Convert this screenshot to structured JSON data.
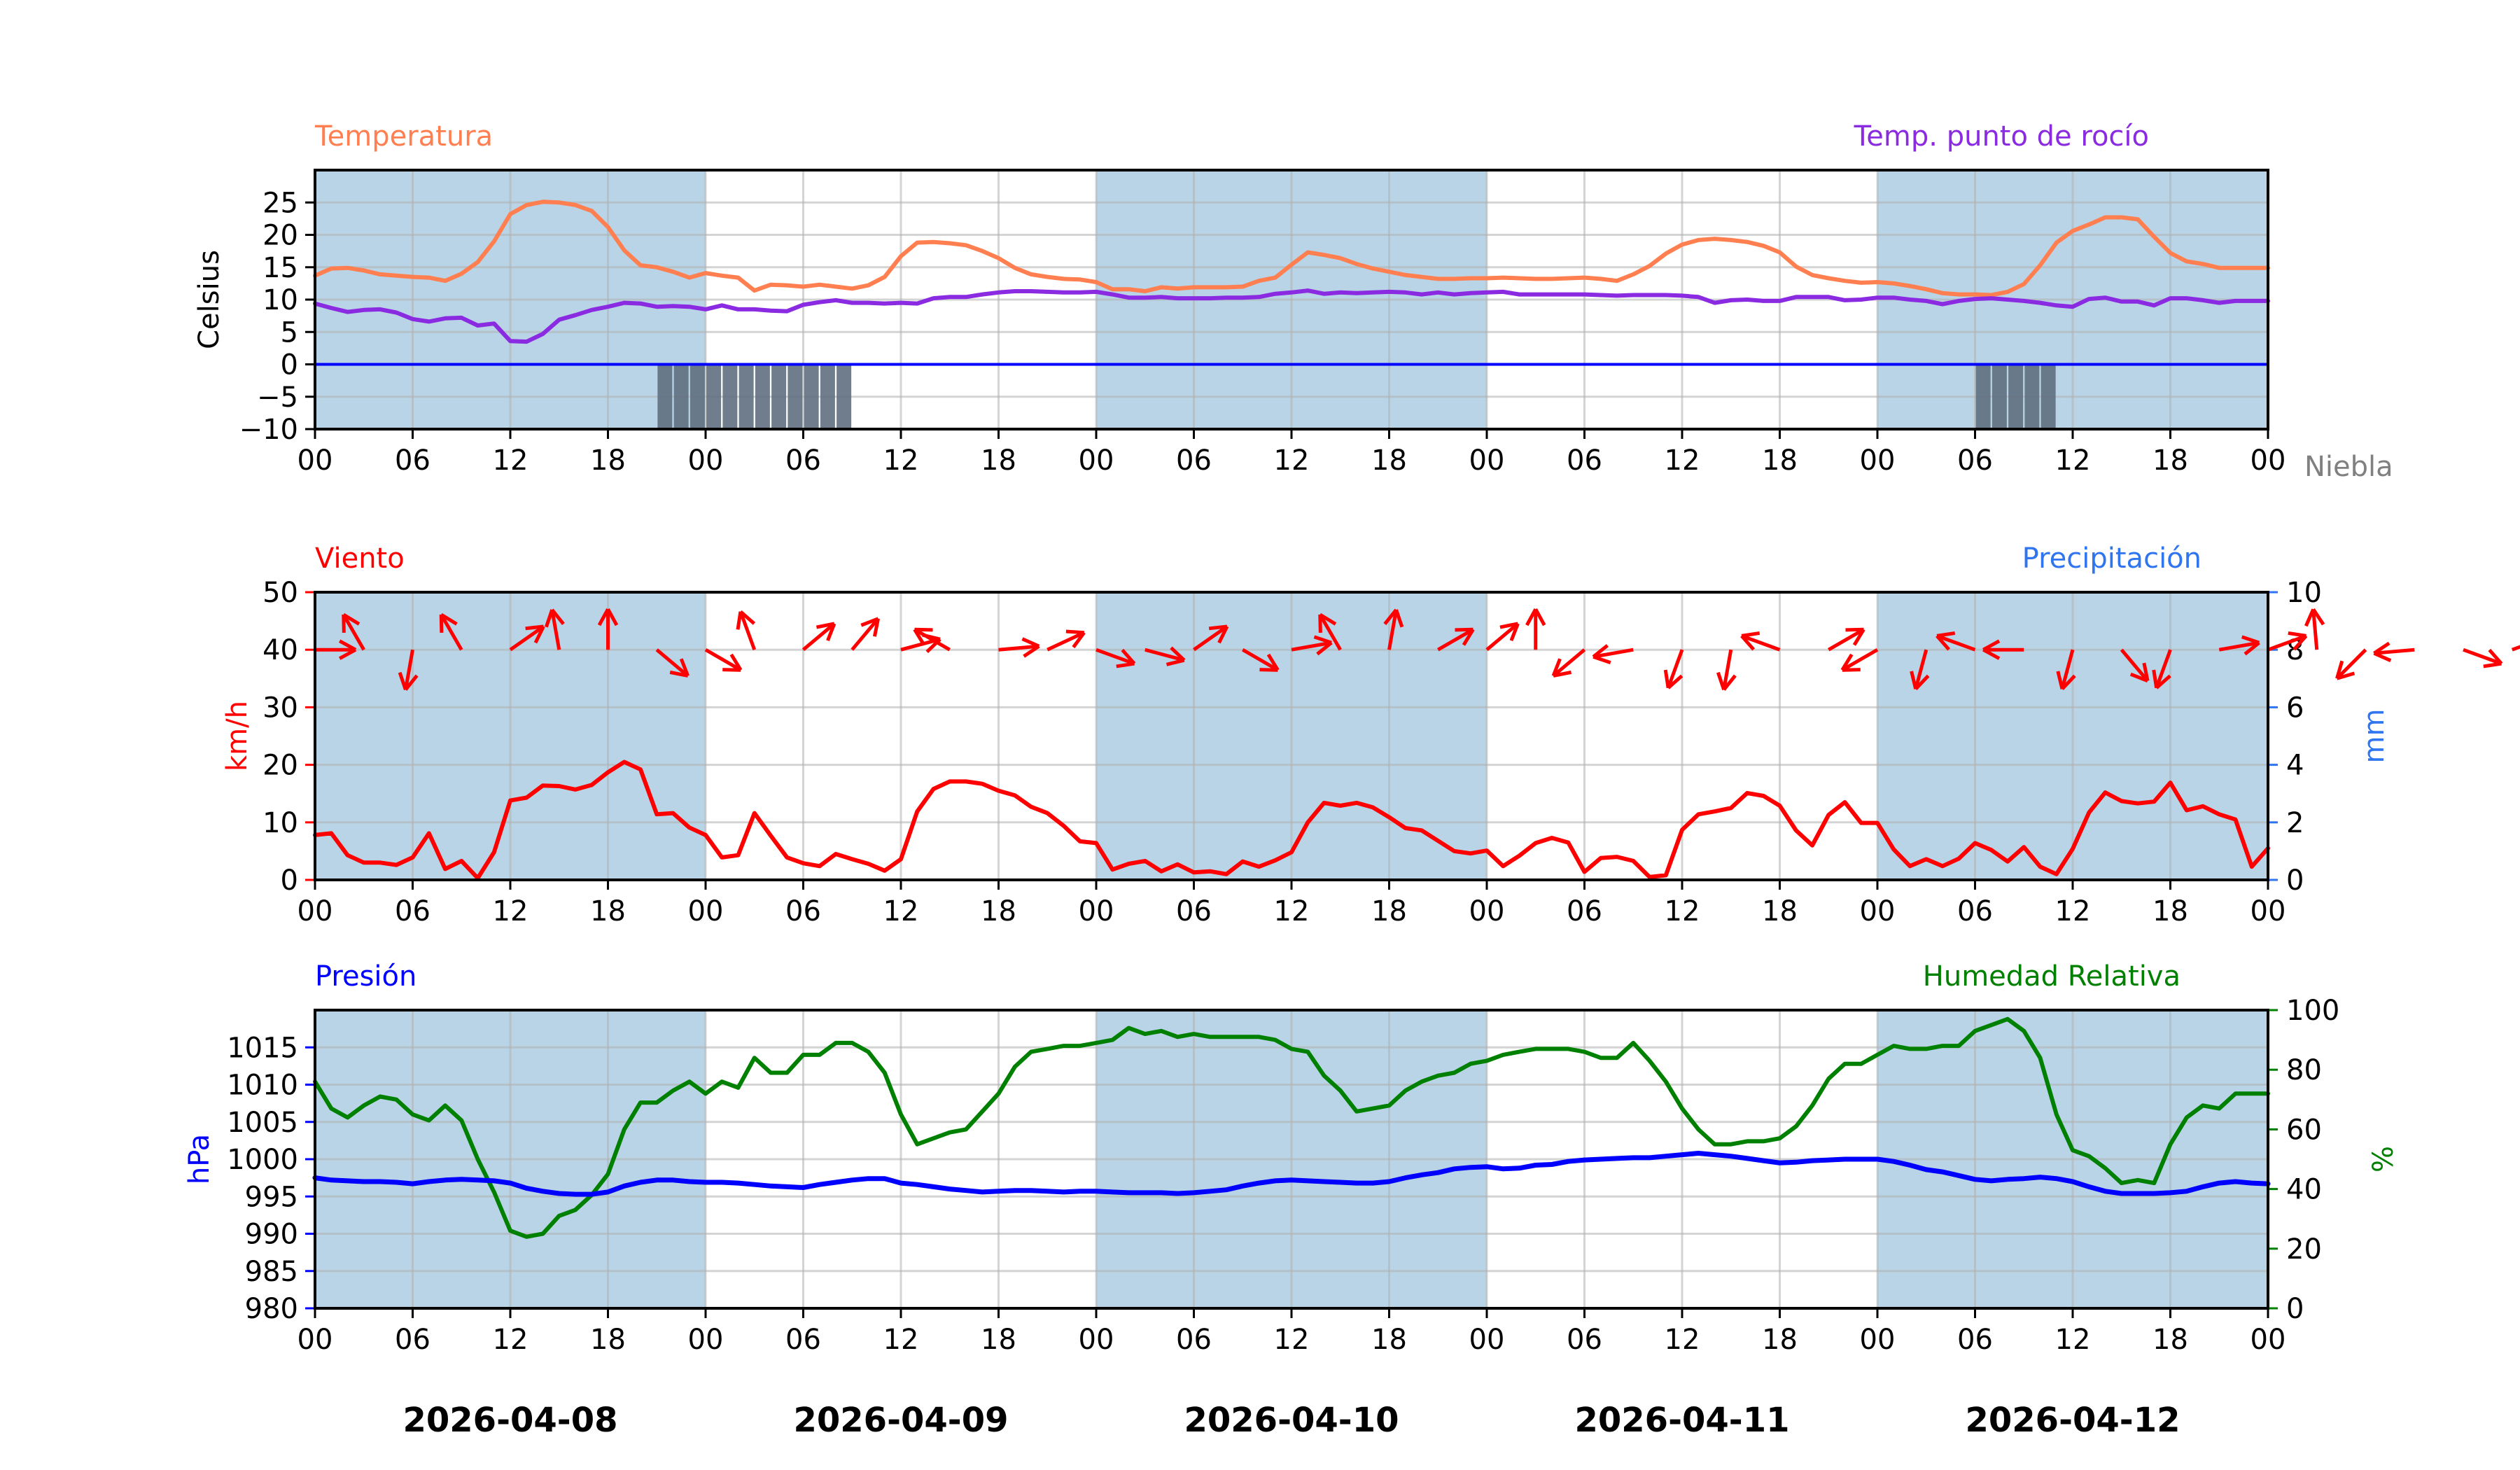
{
  "chart_data": [
    {
      "type": "line",
      "panel": "temperature",
      "title_left": "Temperatura",
      "title_right": "Temp. punto de rocío",
      "ylabel": "Celsius",
      "ylim": [
        -10,
        30
      ],
      "yticks": [
        -10,
        -5,
        0,
        5,
        10,
        15,
        20,
        25
      ],
      "ytick_labels": [
        "−10",
        "−5",
        "0",
        "5",
        "10",
        "15",
        "20",
        "25"
      ],
      "grid": true,
      "reference_line": {
        "y": 0,
        "color": "#0000ff"
      },
      "fog_label": "Niebla",
      "fog_hours": [
        21.5,
        22.5,
        23.5,
        24.5,
        25.5,
        26.5,
        27.5,
        28.5,
        29.5,
        30.5,
        31.5,
        32.5,
        102.5,
        103.5,
        104.5,
        105.5,
        106.5
      ],
      "series": [
        {
          "name": "Temperatura",
          "color": "#ff7f50",
          "values": [
            13.7,
            14.8,
            14.9,
            14.5,
            13.9,
            13.7,
            13.5,
            13.4,
            12.9,
            14.0,
            15.8,
            19.0,
            23.2,
            24.6,
            25.1,
            25.0,
            24.6,
            23.7,
            21.2,
            17.6,
            15.3,
            15.0,
            14.3,
            13.4,
            14.1,
            13.7,
            13.4,
            11.4,
            12.3,
            12.2,
            12.0,
            12.3,
            12.0,
            11.7,
            12.2,
            13.5,
            16.7,
            18.8,
            18.9,
            18.7,
            18.4,
            17.5,
            16.4,
            14.9,
            13.9,
            13.5,
            13.2,
            13.1,
            12.7,
            11.6,
            11.6,
            11.3,
            11.9,
            11.7,
            11.9,
            11.9,
            11.9,
            12.0,
            12.9,
            13.4,
            15.4,
            17.3,
            16.9,
            16.4,
            15.5,
            14.8,
            14.3,
            13.8,
            13.5,
            13.2,
            13.2,
            13.3,
            13.3,
            13.4,
            13.3,
            13.2,
            13.2,
            13.3,
            13.4,
            13.2,
            12.9,
            13.9,
            15.2,
            17.1,
            18.5,
            19.2,
            19.4,
            19.2,
            18.9,
            18.3,
            17.3,
            15.1,
            13.8,
            13.3,
            12.9,
            12.6,
            12.7,
            12.5,
            12.1,
            11.6,
            11.0,
            10.8,
            10.8,
            10.7,
            11.2,
            12.4,
            15.3,
            18.8,
            20.6,
            21.6,
            22.7,
            22.7,
            22.4,
            19.7,
            17.2,
            15.9,
            15.5,
            14.9,
            14.9,
            14.9,
            14.9
          ]
        },
        {
          "name": "Temp. punto de rocío",
          "color": "#8a2be2",
          "values": [
            9.4,
            8.7,
            8.1,
            8.4,
            8.5,
            8.0,
            7.0,
            6.6,
            7.1,
            7.2,
            6.0,
            6.3,
            3.6,
            3.5,
            4.7,
            6.9,
            7.6,
            8.4,
            8.9,
            9.5,
            9.4,
            8.9,
            9.0,
            8.9,
            8.5,
            9.1,
            8.5,
            8.5,
            8.3,
            8.2,
            9.2,
            9.6,
            9.9,
            9.5,
            9.5,
            9.4,
            9.5,
            9.4,
            10.2,
            10.4,
            10.4,
            10.8,
            11.1,
            11.3,
            11.3,
            11.2,
            11.1,
            11.1,
            11.2,
            10.8,
            10.3,
            10.3,
            10.4,
            10.2,
            10.2,
            10.2,
            10.3,
            10.3,
            10.4,
            10.9,
            11.1,
            11.4,
            10.9,
            11.1,
            11.0,
            11.1,
            11.2,
            11.1,
            10.8,
            11.1,
            10.8,
            11.0,
            11.1,
            11.2,
            10.8,
            10.8,
            10.8,
            10.8,
            10.8,
            10.7,
            10.6,
            10.7,
            10.7,
            10.7,
            10.6,
            10.4,
            9.5,
            9.9,
            10.0,
            9.8,
            9.8,
            10.4,
            10.4,
            10.4,
            9.9,
            10.0,
            10.3,
            10.3,
            10.0,
            9.8,
            9.3,
            9.8,
            10.1,
            10.2,
            10.0,
            9.8,
            9.5,
            9.1,
            8.9,
            10.1,
            10.3,
            9.7,
            9.7,
            9.1,
            10.2,
            10.2,
            9.9,
            9.5,
            9.8,
            9.8,
            9.8
          ]
        }
      ]
    },
    {
      "type": "line",
      "panel": "wind",
      "title_left": "Viento",
      "title_right": "Precipitación",
      "ylabel": "km/h",
      "ylabel_right": "mm",
      "ylim": [
        0,
        50
      ],
      "yticks": [
        0,
        10,
        20,
        30,
        40,
        50
      ],
      "ylim_right": [
        0,
        10
      ],
      "yticks_right": [
        0,
        2,
        4,
        6,
        8,
        10
      ],
      "grid": true,
      "series": [
        {
          "name": "Viento",
          "color": "#ff0000",
          "values": [
            7.8,
            8.1,
            4.3,
            3.0,
            3.0,
            2.6,
            3.9,
            8.1,
            1.9,
            3.3,
            0.3,
            4.8,
            13.8,
            14.3,
            16.4,
            16.3,
            15.7,
            16.5,
            18.7,
            20.5,
            19.2,
            11.4,
            11.6,
            9.1,
            7.8,
            3.9,
            4.3,
            11.6,
            7.7,
            3.9,
            2.9,
            2.4,
            4.5,
            3.6,
            2.8,
            1.6,
            3.6,
            11.9,
            15.8,
            17.1,
            17.1,
            16.7,
            15.5,
            14.7,
            12.7,
            11.6,
            9.4,
            6.7,
            6.4,
            1.8,
            2.8,
            3.3,
            1.5,
            2.7,
            1.3,
            1.5,
            1.0,
            3.2,
            2.3,
            3.4,
            4.8,
            10.0,
            13.4,
            12.9,
            13.4,
            12.6,
            10.9,
            9.0,
            8.6,
            6.8,
            5.0,
            4.6,
            5.1,
            2.4,
            4.2,
            6.4,
            7.3,
            6.5,
            1.4,
            3.8,
            4.0,
            3.3,
            0.5,
            0.8,
            8.7,
            11.4,
            11.9,
            12.5,
            15.1,
            14.6,
            12.9,
            8.6,
            6.0,
            11.3,
            13.5,
            9.9,
            9.9,
            5.3,
            2.4,
            3.6,
            2.4,
            3.7,
            6.4,
            5.2,
            3.2,
            5.7,
            2.3,
            1.0,
            5.4,
            11.7,
            15.2,
            13.7,
            13.3,
            13.6,
            16.9,
            12.1,
            12.8,
            11.4,
            10.5,
            2.3,
            5.5
          ]
        }
      ],
      "wind_arrows": {
        "level": 40,
        "interval_hours": 3,
        "directions_deg": [
          0,
          120,
          260,
          120,
          35,
          100,
          90,
          320,
          330,
          110,
          40,
          50,
          15,
          150,
          5,
          25,
          340,
          345,
          35,
          330,
          10,
          120,
          80,
          30,
          40,
          90,
          220,
          190,
          250,
          260,
          160,
          30,
          210,
          255,
          160,
          180,
          255,
          310,
          250,
          10,
          20,
          95,
          225,
          185,
          340,
          20,
          140,
          165
        ]
      },
      "precipitation": []
    },
    {
      "type": "line",
      "panel": "pressure",
      "title_left": "Presión",
      "title_right": "Humedad Relativa",
      "ylabel": "hPa",
      "ylabel_right": "%",
      "ylim": [
        980,
        1020
      ],
      "yticks": [
        980,
        985,
        990,
        995,
        1000,
        1005,
        1010,
        1015
      ],
      "ylim_right": [
        0,
        100
      ],
      "yticks_right": [
        0,
        20,
        40,
        60,
        80,
        100
      ],
      "grid": true,
      "series": [
        {
          "name": "Presión",
          "color": "#0000ff",
          "axis": "left",
          "values": [
            997.5,
            997.2,
            997.1,
            997.0,
            997.0,
            996.9,
            996.7,
            997.0,
            997.2,
            997.3,
            997.2,
            997.1,
            996.8,
            996.1,
            995.7,
            995.4,
            995.3,
            995.3,
            995.6,
            996.4,
            996.9,
            997.2,
            997.2,
            997.0,
            996.9,
            996.9,
            996.8,
            996.6,
            996.4,
            996.3,
            996.2,
            996.6,
            996.9,
            997.2,
            997.4,
            997.4,
            996.8,
            996.6,
            996.3,
            996.0,
            995.8,
            995.6,
            995.7,
            995.8,
            995.8,
            995.7,
            995.6,
            995.7,
            995.7,
            995.6,
            995.5,
            995.5,
            995.5,
            995.4,
            995.5,
            995.7,
            995.9,
            996.4,
            996.8,
            997.1,
            997.2,
            997.1,
            997.0,
            996.9,
            996.8,
            996.8,
            997.0,
            997.5,
            997.9,
            998.2,
            998.7,
            998.9,
            999.0,
            998.7,
            998.8,
            999.2,
            999.3,
            999.7,
            999.9,
            1000.0,
            1000.1,
            1000.2,
            1000.2,
            1000.4,
            1000.6,
            1000.8,
            1000.6,
            1000.4,
            1000.1,
            999.8,
            999.5,
            999.6,
            999.8,
            999.9,
            1000.0,
            1000.0,
            1000.0,
            999.7,
            999.2,
            998.6,
            998.3,
            997.8,
            997.3,
            997.1,
            997.3,
            997.4,
            997.6,
            997.4,
            997.0,
            996.3,
            995.7,
            995.4,
            995.4,
            995.4,
            995.5,
            995.7,
            996.3,
            996.8,
            997.0,
            996.8,
            996.7
          ]
        },
        {
          "name": "Humedad Relativa",
          "color": "#008000",
          "axis": "right",
          "values": [
            76,
            67,
            64,
            68,
            71,
            70,
            65,
            63,
            68,
            63,
            50,
            39,
            26,
            24,
            25,
            31,
            33,
            38,
            45,
            60,
            69,
            69,
            73,
            76,
            72,
            76,
            74,
            84,
            79,
            79,
            85,
            85,
            89,
            89,
            86,
            79,
            65,
            55,
            57,
            59,
            60,
            66,
            72,
            81,
            86,
            87,
            88,
            88,
            89,
            90,
            94,
            92,
            93,
            91,
            92,
            91,
            91,
            91,
            91,
            90,
            87,
            86,
            78,
            73,
            66,
            67,
            68,
            73,
            76,
            78,
            79,
            82,
            83,
            85,
            86,
            87,
            87,
            87,
            86,
            84,
            84,
            89,
            83,
            76,
            67,
            60,
            55,
            55,
            56,
            56,
            57,
            61,
            68,
            77,
            82,
            82,
            85,
            88,
            87,
            87,
            88,
            88,
            93,
            95,
            97,
            93,
            84,
            65,
            53,
            51,
            47,
            42,
            43,
            42,
            55,
            64,
            68,
            67,
            72,
            72,
            72
          ]
        }
      ]
    }
  ],
  "x_axis": {
    "start": "2026-04-08 00:00",
    "hours": 120,
    "tick_interval_hours": 6,
    "tick_labels": [
      "00",
      "06",
      "12",
      "18",
      "00",
      "06",
      "12",
      "18",
      "00",
      "06",
      "12",
      "18",
      "00",
      "06",
      "12",
      "18",
      "00",
      "06",
      "12",
      "18",
      "00"
    ],
    "date_labels": [
      "2026-04-08",
      "2026-04-09",
      "2026-04-10",
      "2026-04-11",
      "2026-04-12"
    ]
  },
  "night_shading": {
    "color": "#b9d4e6",
    "day_ranges_hours": [
      [
        0,
        24
      ],
      [
        48,
        72
      ],
      [
        96,
        120
      ]
    ]
  }
}
